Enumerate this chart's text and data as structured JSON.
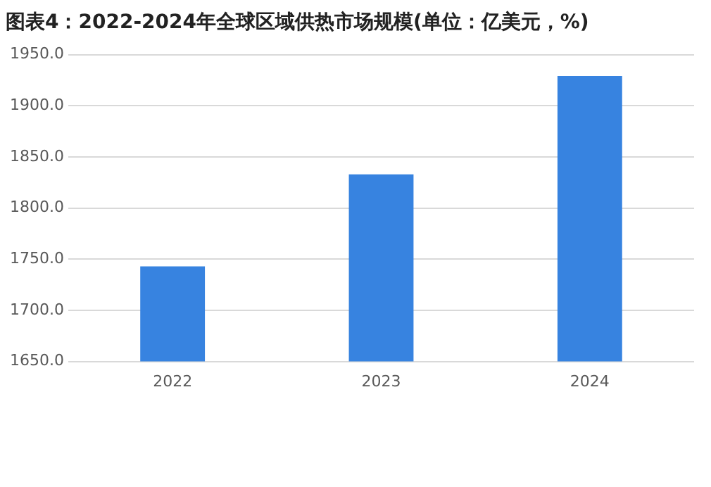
{
  "chart_data": {
    "type": "bar",
    "title": "图表4：2022-2024年全球区域供热市场规模(单位：亿美元，%)",
    "categories": [
      "2022",
      "2023",
      "2024"
    ],
    "values": [
      1743,
      1833,
      1929
    ],
    "color": "#3783e0",
    "ylim": [
      1650,
      1950
    ],
    "yticks": [
      {
        "value": 1650,
        "label": "1650.0"
      },
      {
        "value": 1700,
        "label": "1700.0"
      },
      {
        "value": 1750,
        "label": "1750.0"
      },
      {
        "value": 1800,
        "label": "1800.0"
      },
      {
        "value": 1850,
        "label": "1850.0"
      },
      {
        "value": 1900,
        "label": "1900.0"
      },
      {
        "value": 1950,
        "label": "1950.0"
      }
    ],
    "grid": "y",
    "legend": false
  }
}
